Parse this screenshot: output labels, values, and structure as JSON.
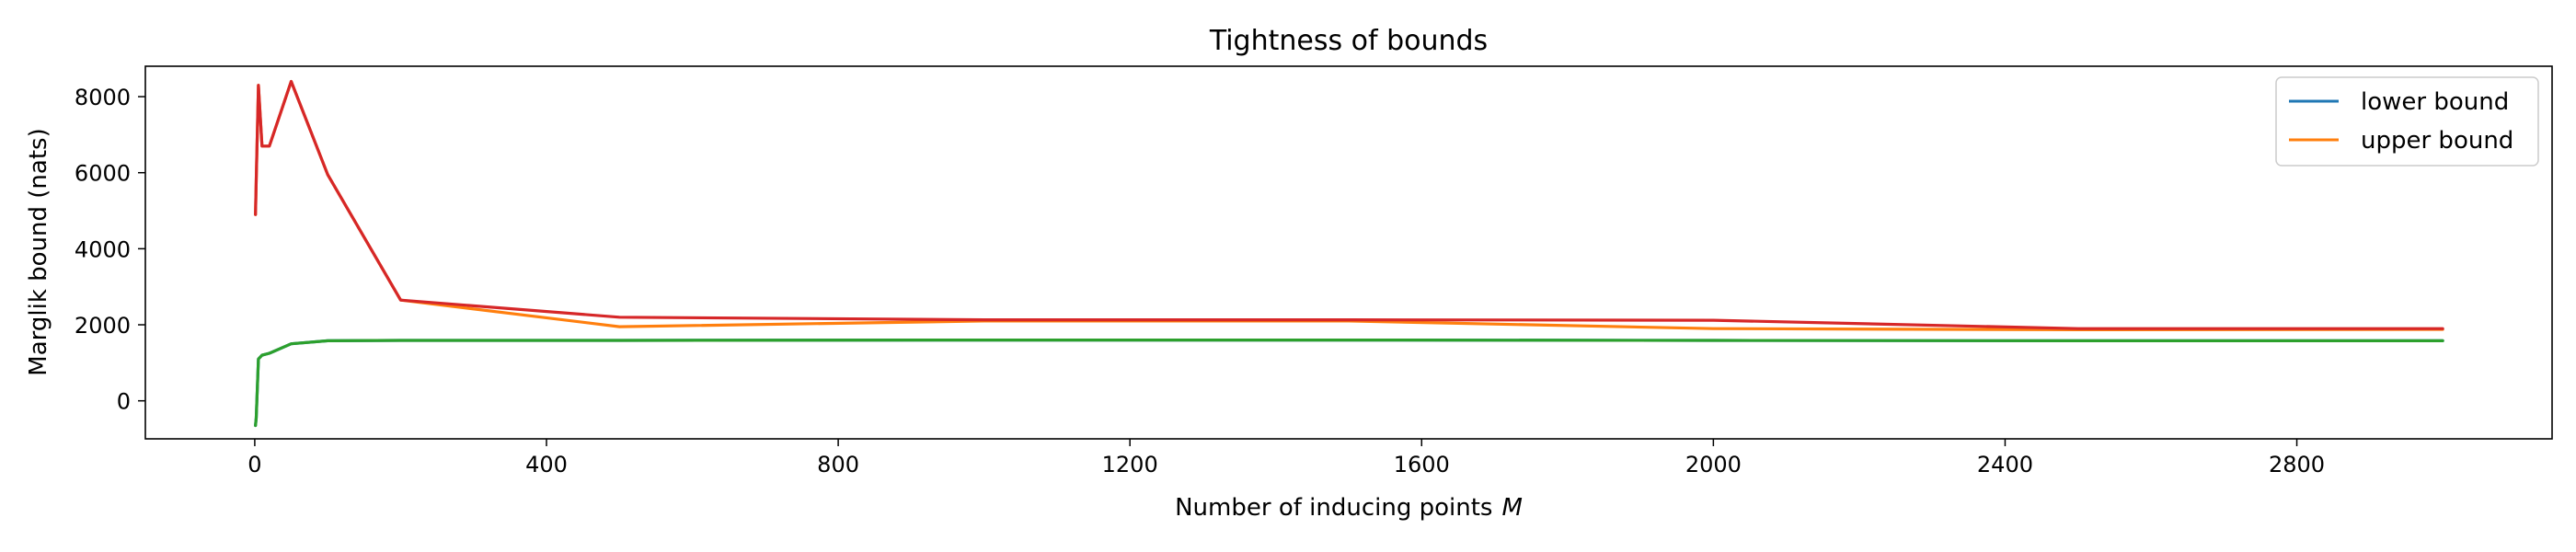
{
  "chart_data": {
    "type": "line",
    "title": "Tightness of bounds",
    "xlabel": "Number of inducing points",
    "xlabel_var": "M",
    "ylabel": "Marglik bound (nats)",
    "xlim": [
      -150,
      3150
    ],
    "ylim": [
      -1000,
      8800
    ],
    "xticks": [
      0,
      400,
      800,
      1200,
      1600,
      2000,
      2400,
      2800
    ],
    "yticks": [
      0,
      2000,
      4000,
      6000,
      8000
    ],
    "legend_position": "top-right",
    "series": [
      {
        "name": "lower bound",
        "color": "#1f77b4",
        "in_legend": true,
        "x": [
          1,
          2,
          5,
          10,
          20,
          50,
          100,
          200,
          500,
          1000,
          1500,
          2000,
          2500,
          3000
        ],
        "y": [
          -650,
          -450,
          1100,
          1200,
          1250,
          1500,
          1580,
          1590,
          1590,
          1600,
          1600,
          1590,
          1580,
          1580
        ]
      },
      {
        "name": "upper bound",
        "color": "#ff7f0e",
        "in_legend": true,
        "x": [
          1,
          2,
          5,
          10,
          20,
          50,
          100,
          200,
          500,
          1000,
          1500,
          2000,
          2500,
          3000
        ],
        "y": [
          4900,
          5800,
          8300,
          6700,
          6700,
          8400,
          5950,
          2650,
          1950,
          2100,
          2100,
          1900,
          1870,
          1880
        ]
      },
      {
        "name": "",
        "color": "#2ca02c",
        "in_legend": false,
        "x": [
          1,
          2,
          5,
          10,
          20,
          50,
          100,
          200,
          500,
          1000,
          1500,
          2000,
          2500,
          3000
        ],
        "y": [
          -650,
          -450,
          1100,
          1200,
          1250,
          1500,
          1580,
          1590,
          1590,
          1600,
          1600,
          1590,
          1580,
          1580
        ]
      },
      {
        "name": "",
        "color": "#d62728",
        "in_legend": false,
        "x": [
          1,
          2,
          5,
          10,
          20,
          50,
          100,
          200,
          500,
          1000,
          1500,
          2000,
          2500,
          3000
        ],
        "y": [
          4900,
          5800,
          8300,
          6700,
          6700,
          8400,
          5950,
          2650,
          2200,
          2130,
          2130,
          2120,
          1900,
          1900
        ]
      }
    ]
  }
}
